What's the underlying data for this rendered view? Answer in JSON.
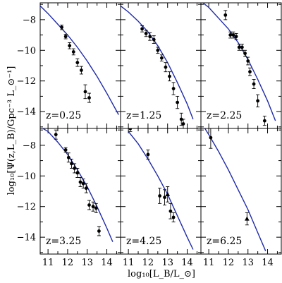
{
  "chart_data": {
    "type": "scatter",
    "xlabel": "log₁₀[L_B/L_⊙]",
    "ylabel": "log₁₀[Ψ(z,L_B)/Gpc⁻³ L_⊙⁻¹]",
    "xlim": [
      10.6,
      14.7
    ],
    "ylim": [
      -15.1,
      -6.9
    ],
    "xticks": [
      11,
      12,
      13,
      14
    ],
    "yticks": [
      -8,
      -10,
      -12,
      -14
    ],
    "grid": false,
    "layout": "2 rows x 3 columns, shared axes",
    "series_color": "#1f2aa8",
    "panels": [
      {
        "label": "z=0.25",
        "points": [
          {
            "x": 11.7,
            "y": -8.5,
            "err": 0.15
          },
          {
            "x": 11.9,
            "y": -9.1,
            "err": 0.15
          },
          {
            "x": 12.1,
            "y": -9.7,
            "err": 0.2
          },
          {
            "x": 12.3,
            "y": -10.1,
            "err": 0.2
          },
          {
            "x": 12.5,
            "y": -10.8,
            "err": 0.25
          },
          {
            "x": 12.7,
            "y": -11.3,
            "err": 0.25
          },
          {
            "x": 12.9,
            "y": -12.7,
            "err": 0.45
          },
          {
            "x": 13.1,
            "y": -13.1,
            "err": 0.3
          }
        ],
        "curve": [
          [
            10.6,
            -7.1
          ],
          [
            11.0,
            -7.6
          ],
          [
            11.5,
            -8.3
          ],
          [
            12.0,
            -9.0
          ],
          [
            12.5,
            -9.8
          ],
          [
            13.0,
            -10.7
          ],
          [
            13.5,
            -11.7
          ],
          [
            14.0,
            -12.8
          ],
          [
            14.6,
            -14.2
          ]
        ]
      },
      {
        "label": "z=1.25",
        "points": [
          {
            "x": 11.7,
            "y": -8.6,
            "err": 0.2
          },
          {
            "x": 11.9,
            "y": -8.9,
            "err": 0.2
          },
          {
            "x": 12.1,
            "y": -9.1,
            "err": 0.25
          },
          {
            "x": 12.3,
            "y": -9.3,
            "err": 0.25
          },
          {
            "x": 12.5,
            "y": -10.0,
            "err": 0.2
          },
          {
            "x": 12.7,
            "y": -10.5,
            "err": 0.2
          },
          {
            "x": 12.9,
            "y": -11.1,
            "err": 0.3
          },
          {
            "x": 13.1,
            "y": -11.7,
            "err": 0.3
          },
          {
            "x": 13.3,
            "y": -12.5,
            "err": 0.4
          },
          {
            "x": 13.5,
            "y": -13.4,
            "err": 0.4
          },
          {
            "x": 13.7,
            "y": -14.5,
            "err": 0.4
          },
          {
            "x": 13.8,
            "y": -14.8,
            "err": 0.3
          }
        ],
        "curve": [
          [
            10.6,
            -7.1
          ],
          [
            11.0,
            -7.5
          ],
          [
            11.5,
            -8.1
          ],
          [
            12.0,
            -8.8
          ],
          [
            12.5,
            -9.7
          ],
          [
            13.0,
            -10.8
          ],
          [
            13.5,
            -12.1
          ],
          [
            14.0,
            -13.5
          ],
          [
            14.3,
            -14.5
          ]
        ]
      },
      {
        "label": "z=2.25",
        "points": [
          {
            "x": 11.85,
            "y": -7.7,
            "err": 0.3
          },
          {
            "x": 12.1,
            "y": -9.0,
            "err": 0.2
          },
          {
            "x": 12.25,
            "y": -9.0,
            "err": 0.2
          },
          {
            "x": 12.4,
            "y": -9.1,
            "err": 0.2
          },
          {
            "x": 12.55,
            "y": -9.8,
            "err": 0.2
          },
          {
            "x": 12.7,
            "y": -9.8,
            "err": 0.2
          },
          {
            "x": 12.85,
            "y": -10.2,
            "err": 0.2
          },
          {
            "x": 13.0,
            "y": -10.7,
            "err": 0.25
          },
          {
            "x": 13.1,
            "y": -11.4,
            "err": 0.25
          },
          {
            "x": 13.3,
            "y": -12.2,
            "err": 0.3
          },
          {
            "x": 13.5,
            "y": -13.3,
            "err": 0.4
          },
          {
            "x": 13.85,
            "y": -14.6,
            "err": 0.3
          }
        ],
        "curve": [
          [
            10.6,
            -6.8
          ],
          [
            11.0,
            -7.2
          ],
          [
            11.5,
            -7.9
          ],
          [
            12.0,
            -8.6
          ],
          [
            12.5,
            -9.5
          ],
          [
            13.0,
            -10.6
          ],
          [
            13.5,
            -11.9
          ],
          [
            14.0,
            -13.3
          ],
          [
            14.4,
            -14.6
          ]
        ]
      },
      {
        "label": "z=3.25",
        "points": [
          {
            "x": 11.4,
            "y": -7.3,
            "err": 0.3
          },
          {
            "x": 11.9,
            "y": -8.3,
            "err": 0.15
          },
          {
            "x": 12.05,
            "y": -8.8,
            "err": 0.3
          },
          {
            "x": 12.2,
            "y": -9.2,
            "err": 0.3
          },
          {
            "x": 12.35,
            "y": -9.5,
            "err": 0.3
          },
          {
            "x": 12.5,
            "y": -9.8,
            "err": 0.3
          },
          {
            "x": 12.65,
            "y": -10.4,
            "err": 0.3
          },
          {
            "x": 12.8,
            "y": -10.5,
            "err": 0.3
          },
          {
            "x": 12.95,
            "y": -10.8,
            "err": 0.3
          },
          {
            "x": 13.1,
            "y": -11.9,
            "err": 0.3
          },
          {
            "x": 13.3,
            "y": -12.0,
            "err": 0.3
          },
          {
            "x": 13.45,
            "y": -12.1,
            "err": 0.3
          },
          {
            "x": 13.6,
            "y": -13.6,
            "err": 0.3
          }
        ],
        "curve": [
          [
            10.6,
            -6.8
          ],
          [
            11.0,
            -7.1
          ],
          [
            11.5,
            -7.8
          ],
          [
            12.0,
            -8.6
          ],
          [
            12.5,
            -9.6
          ],
          [
            13.0,
            -10.7
          ],
          [
            13.5,
            -12.0
          ],
          [
            14.0,
            -13.4
          ],
          [
            14.3,
            -14.3
          ]
        ]
      },
      {
        "label": "z=4.25",
        "points": [
          {
            "x": 11.1,
            "y": -6.9,
            "err": 0.2
          },
          {
            "x": 12.0,
            "y": -8.6,
            "err": 0.3
          },
          {
            "x": 12.6,
            "y": -11.3,
            "err": 0.5
          },
          {
            "x": 12.85,
            "y": -11.4,
            "err": 0.5
          },
          {
            "x": 13.0,
            "y": -11.2,
            "err": 0.5,
            "marker": "triangle"
          },
          {
            "x": 13.15,
            "y": -12.3,
            "err": 0.5
          },
          {
            "x": 13.3,
            "y": -12.7,
            "err": 0.3
          }
        ],
        "curve": [
          [
            11.0,
            -7.1
          ],
          [
            11.5,
            -7.9
          ],
          [
            12.0,
            -8.9
          ],
          [
            12.5,
            -10.0
          ],
          [
            13.0,
            -11.2
          ],
          [
            13.5,
            -12.6
          ],
          [
            14.0,
            -14.0
          ],
          [
            14.3,
            -14.8
          ]
        ]
      },
      {
        "label": "z=6.25",
        "points": [
          {
            "x": 11.1,
            "y": -7.5,
            "err": 0.7
          },
          {
            "x": 12.95,
            "y": -12.8,
            "err": 0.4,
            "marker": "triangle"
          }
        ],
        "curve": [
          [
            10.8,
            -6.9
          ],
          [
            11.0,
            -7.3
          ],
          [
            11.5,
            -8.4
          ],
          [
            12.0,
            -9.6
          ],
          [
            12.5,
            -10.9
          ],
          [
            13.0,
            -12.2
          ],
          [
            13.5,
            -13.7
          ],
          [
            13.9,
            -14.9
          ]
        ]
      }
    ]
  }
}
